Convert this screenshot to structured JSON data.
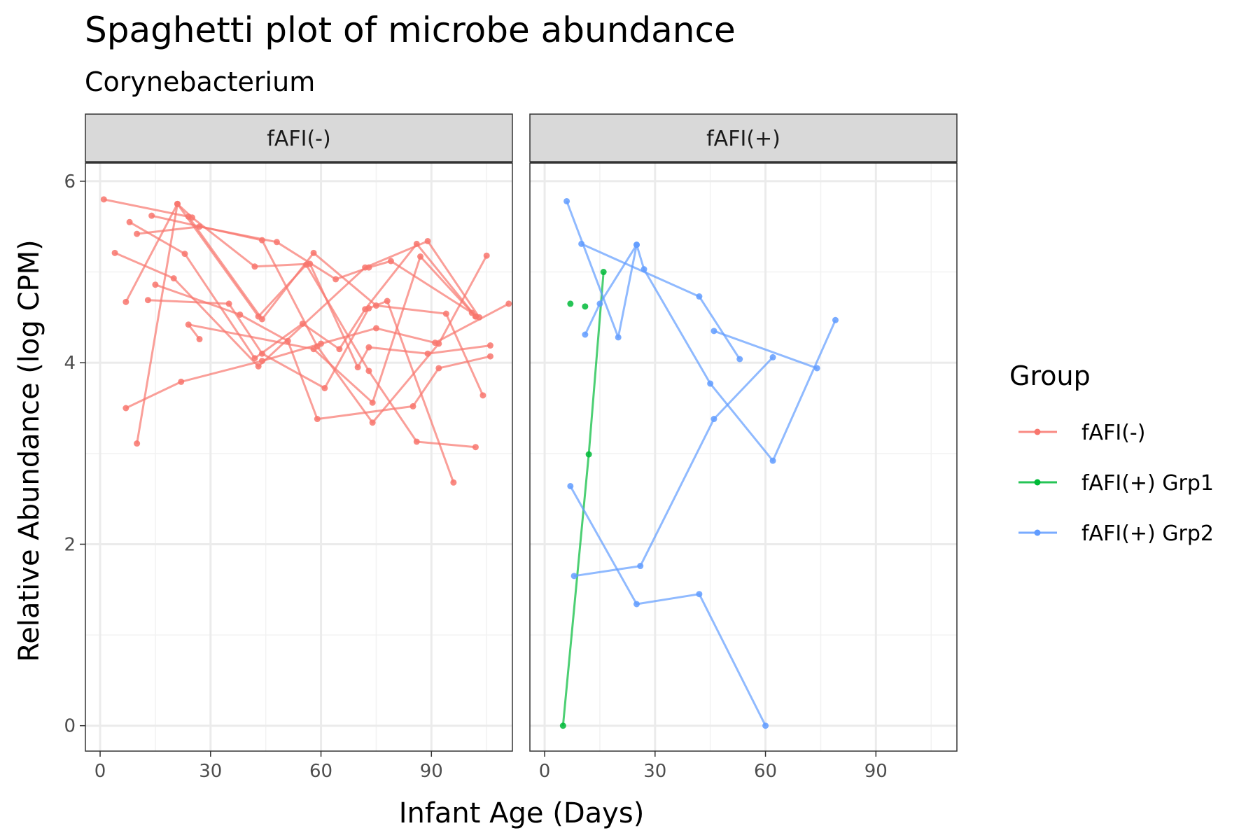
{
  "chart_data": {
    "type": "line",
    "title": "Spaghetti plot of microbe abundance",
    "subtitle": "Corynebacterium",
    "xlabel": "Infant Age (Days)",
    "ylabel": "Relative Abundance (log CPM)",
    "xlim": [
      -4,
      112
    ],
    "ylim": [
      -0.28,
      6.2
    ],
    "x_ticks": [
      0,
      30,
      60,
      90
    ],
    "y_ticks": [
      0,
      2,
      4,
      6
    ],
    "grid": true,
    "legend": {
      "title": "Group",
      "position": "right",
      "entries": [
        {
          "label": "fAFI(-)",
          "color": "#F8766D"
        },
        {
          "label": "fAFI(+) Grp1",
          "color": "#00BA38"
        },
        {
          "label": "fAFI(+) Grp2",
          "color": "#619CFF"
        }
      ]
    },
    "panels": [
      {
        "label": "fAFI(-)",
        "lines": [
          {
            "group": 0,
            "points": [
              [
                1,
                5.8
              ],
              [
                24,
                5.61
              ],
              [
                44,
                4.48
              ],
              [
                58,
                5.21
              ],
              [
                75,
                4.63
              ],
              [
                94,
                4.54
              ],
              [
                104,
                3.64
              ]
            ]
          },
          {
            "group": 0,
            "points": [
              [
                8,
                5.55
              ],
              [
                23,
                5.2
              ],
              [
                42,
                4.05
              ],
              [
                55,
                4.43
              ],
              [
                65,
                4.15
              ],
              [
                72,
                4.59
              ],
              [
                86,
                5.31
              ],
              [
                102,
                4.51
              ]
            ]
          },
          {
            "group": 0,
            "points": [
              [
                14,
                5.62
              ],
              [
                44,
                5.35
              ],
              [
                59,
                4.18
              ],
              [
                74,
                3.34
              ],
              [
                92,
                4.21
              ],
              [
                105,
                5.18
              ]
            ]
          },
          {
            "group": 0,
            "points": [
              [
                4,
                5.21
              ],
              [
                20,
                4.93
              ],
              [
                43,
                3.96
              ],
              [
                72,
                5.05
              ],
              [
                89,
                5.34
              ],
              [
                103,
                4.5
              ]
            ]
          },
          {
            "group": 0,
            "points": [
              [
                7,
                4.67
              ],
              [
                21,
                5.75
              ],
              [
                43,
                4.51
              ],
              [
                56,
                5.08
              ],
              [
                73,
                3.91
              ],
              [
                86,
                3.13
              ],
              [
                102,
                3.07
              ]
            ]
          },
          {
            "group": 0,
            "points": [
              [
                10,
                3.11
              ],
              [
                21,
                5.75
              ],
              [
                25,
                5.6
              ],
              [
                42,
                5.06
              ],
              [
                57,
                5.09
              ],
              [
                70,
                3.95
              ],
              [
                73,
                4.17
              ],
              [
                89,
                4.1
              ],
              [
                106,
                4.19
              ]
            ]
          },
          {
            "group": 0,
            "points": [
              [
                7,
                3.5
              ],
              [
                22,
                3.79
              ],
              [
                44,
                4.02
              ],
              [
                60,
                4.21
              ],
              [
                75,
                4.38
              ],
              [
                91,
                4.22
              ],
              [
                111,
                4.65
              ]
            ]
          },
          {
            "group": 0,
            "points": [
              [
                13,
                4.69
              ],
              [
                35,
                4.65
              ],
              [
                44,
                4.1
              ],
              [
                61,
                3.72
              ],
              [
                73,
                4.6
              ],
              [
                78,
                4.68
              ],
              [
                96,
                2.68
              ]
            ]
          },
          {
            "group": 0,
            "points": [
              [
                10,
                5.42
              ],
              [
                27,
                5.5
              ],
              [
                48,
                5.33
              ],
              [
                64,
                4.92
              ],
              [
                73,
                5.05
              ],
              [
                79,
                5.12
              ],
              [
                101,
                4.55
              ]
            ]
          },
          {
            "group": 0,
            "points": [
              [
                15,
                4.86
              ],
              [
                38,
                4.53
              ],
              [
                51,
                4.24
              ],
              [
                59,
                3.38
              ],
              [
                85,
                3.52
              ],
              [
                92,
                3.94
              ],
              [
                106,
                4.07
              ]
            ]
          },
          {
            "group": 0,
            "points": [
              [
                27,
                4.26
              ],
              [
                24,
                4.42
              ],
              [
                58,
                4.15
              ],
              [
                74,
                3.56
              ],
              [
                87,
                5.17
              ],
              [
                102,
                4.51
              ]
            ]
          }
        ]
      },
      {
        "label": "fAFI(+)",
        "lines": [
          {
            "group": 1,
            "points": [
              [
                5,
                0.0
              ],
              [
                12,
                2.99
              ],
              [
                16,
                5.0
              ]
            ]
          },
          {
            "group": 1,
            "points": [
              [
                7,
                4.65
              ]
            ]
          },
          {
            "group": 1,
            "points": [
              [
                11,
                4.62
              ]
            ]
          },
          {
            "group": 2,
            "points": [
              [
                6,
                5.78
              ],
              [
                20,
                4.28
              ],
              [
                25,
                5.3
              ],
              [
                27,
                5.03
              ],
              [
                45,
                3.77
              ],
              [
                62,
                2.92
              ],
              [
                79,
                4.47
              ]
            ]
          },
          {
            "group": 2,
            "points": [
              [
                10,
                5.31
              ],
              [
                42,
                4.73
              ],
              [
                53,
                4.04
              ]
            ]
          },
          {
            "group": 2,
            "points": [
              [
                11,
                4.31
              ],
              [
                15,
                4.65
              ],
              [
                25,
                5.3
              ]
            ]
          },
          {
            "group": 2,
            "points": [
              [
                7,
                2.64
              ],
              [
                25,
                1.34
              ],
              [
                42,
                1.45
              ],
              [
                60,
                0.0
              ]
            ]
          },
          {
            "group": 2,
            "points": [
              [
                8,
                1.65
              ],
              [
                26,
                1.76
              ],
              [
                46,
                3.38
              ],
              [
                62,
                4.06
              ]
            ]
          },
          {
            "group": 2,
            "points": [
              [
                46,
                4.35
              ],
              [
                74,
                3.94
              ]
            ]
          }
        ]
      }
    ]
  }
}
